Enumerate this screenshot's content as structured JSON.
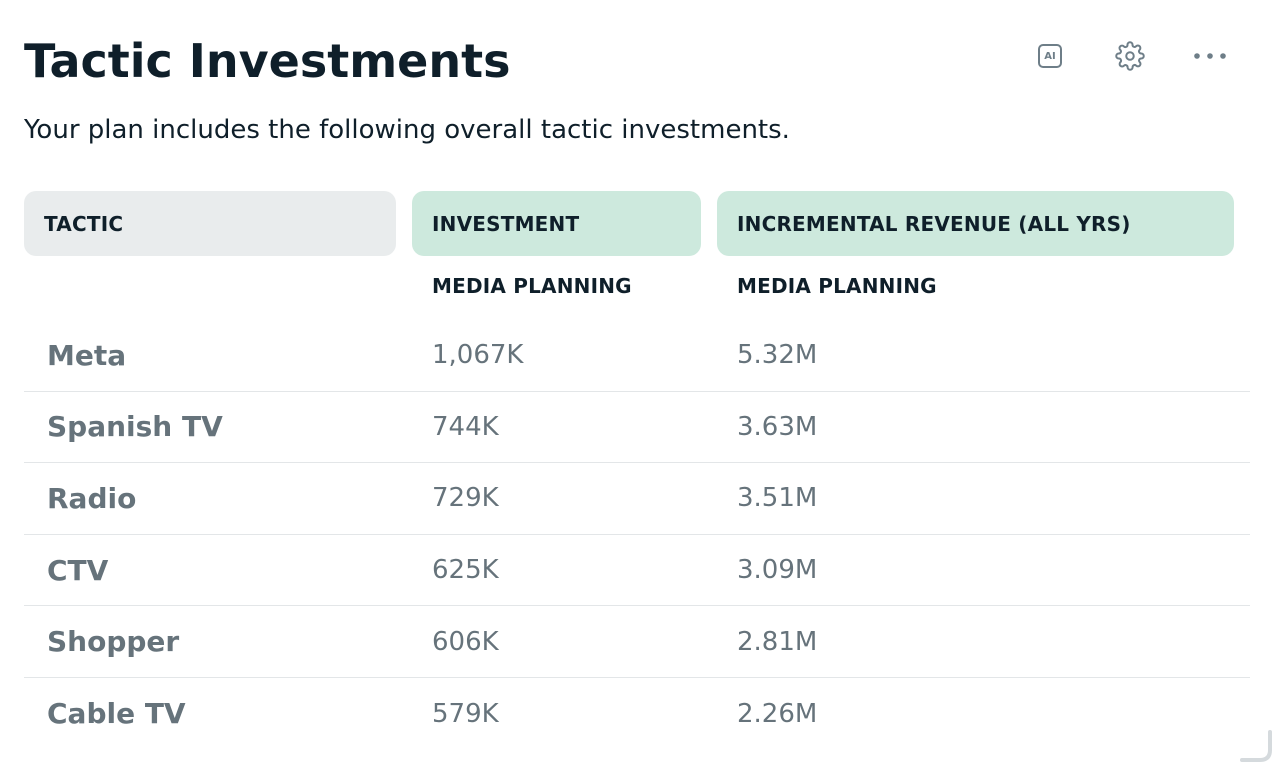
{
  "header": {
    "title": "Tactic Investments",
    "subtitle": "Your plan includes the following overall tactic investments."
  },
  "toolbar": {
    "ai_icon_label": "AI",
    "icons": [
      "ai-icon",
      "gear-icon",
      "more-horizontal-icon"
    ]
  },
  "table": {
    "columns": [
      {
        "label": "TACTIC"
      },
      {
        "label": "INVESTMENT",
        "sublabel": "MEDIA PLANNING"
      },
      {
        "label": "INCREMENTAL REVENUE (ALL YRS)",
        "sublabel": "MEDIA PLANNING"
      }
    ],
    "rows": [
      {
        "tactic": "Meta",
        "investment": "1,067K",
        "revenue": "5.32M"
      },
      {
        "tactic": "Spanish TV",
        "investment": "744K",
        "revenue": "3.63M"
      },
      {
        "tactic": "Radio",
        "investment": "729K",
        "revenue": "3.51M"
      },
      {
        "tactic": "CTV",
        "investment": "625K",
        "revenue": "3.09M"
      },
      {
        "tactic": "Shopper",
        "investment": "606K",
        "revenue": "2.81M"
      },
      {
        "tactic": "Cable TV",
        "investment": "579K",
        "revenue": "2.26M"
      }
    ]
  },
  "colors": {
    "tactic_header_bg": "#e9eced",
    "metric_header_bg": "#cde9dd",
    "body_text": "#66737b",
    "heading_text": "#0f1f2a"
  }
}
